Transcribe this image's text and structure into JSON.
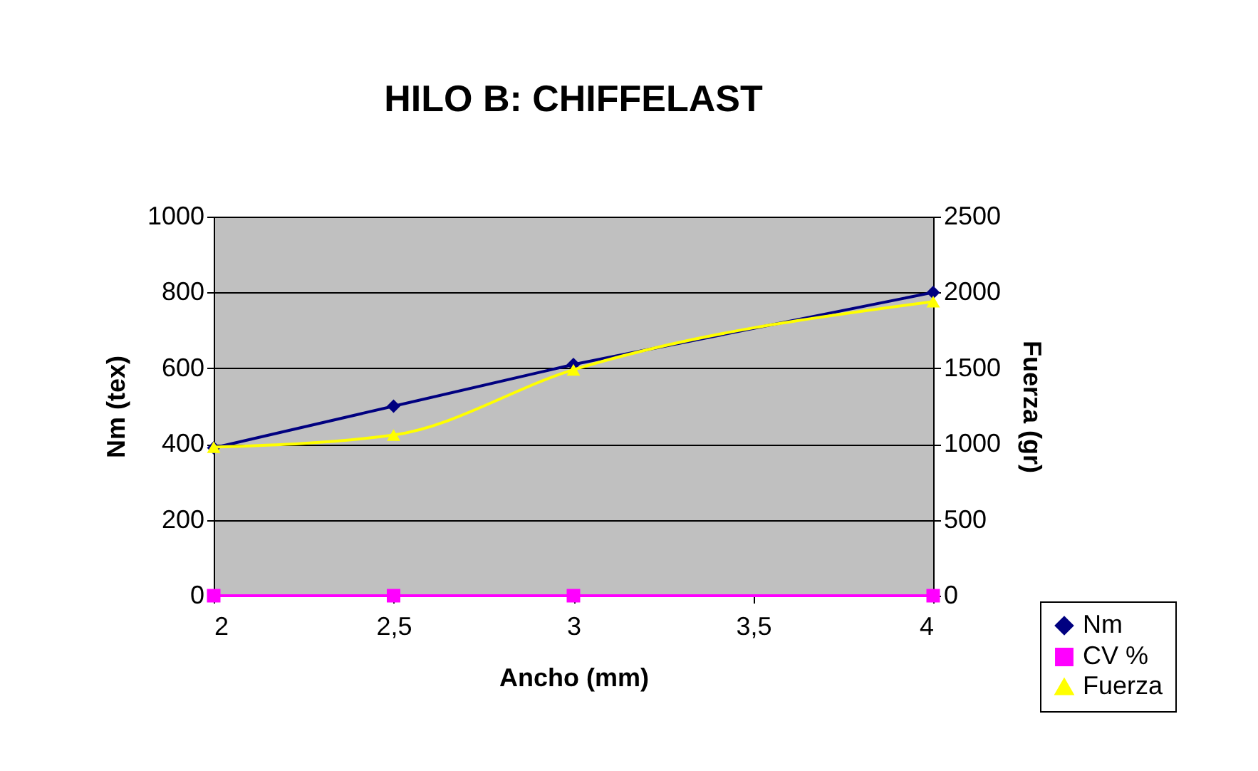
{
  "chart_data": {
    "type": "line",
    "title": "HILO B: CHIFFELAST",
    "xlabel": "Ancho (mm)",
    "ylabel": "Nm (tex)",
    "y2label": "Fuerza (gr)",
    "x": [
      2,
      2.5,
      3,
      4
    ],
    "series": [
      {
        "name": "Nm",
        "color": "#000080",
        "marker": "diamond",
        "values": [
          390,
          500,
          610,
          800
        ]
      },
      {
        "name": "CV %",
        "color": "#ff00ff",
        "marker": "square",
        "values": [
          0,
          0,
          0,
          0
        ]
      },
      {
        "name": "Fuerza",
        "color": "#ffff00",
        "marker": "triangle",
        "axis": "y2",
        "values": [
          980,
          1060,
          1490,
          1940
        ]
      }
    ],
    "xlim": [
      2,
      4
    ],
    "xticks": [
      2,
      {
        "value": 2.5,
        "label": "2,5"
      },
      3,
      {
        "value": 3.5,
        "label": "3,5"
      },
      4
    ],
    "ylim": [
      0,
      1000
    ],
    "yticks": [
      0,
      200,
      400,
      600,
      800,
      1000
    ],
    "y2lim": [
      0,
      2500
    ],
    "y2ticks": [
      0,
      500,
      1000,
      1500,
      2000,
      2500
    ],
    "grid": "y",
    "legend": "bottom right",
    "line_style": "solid"
  }
}
